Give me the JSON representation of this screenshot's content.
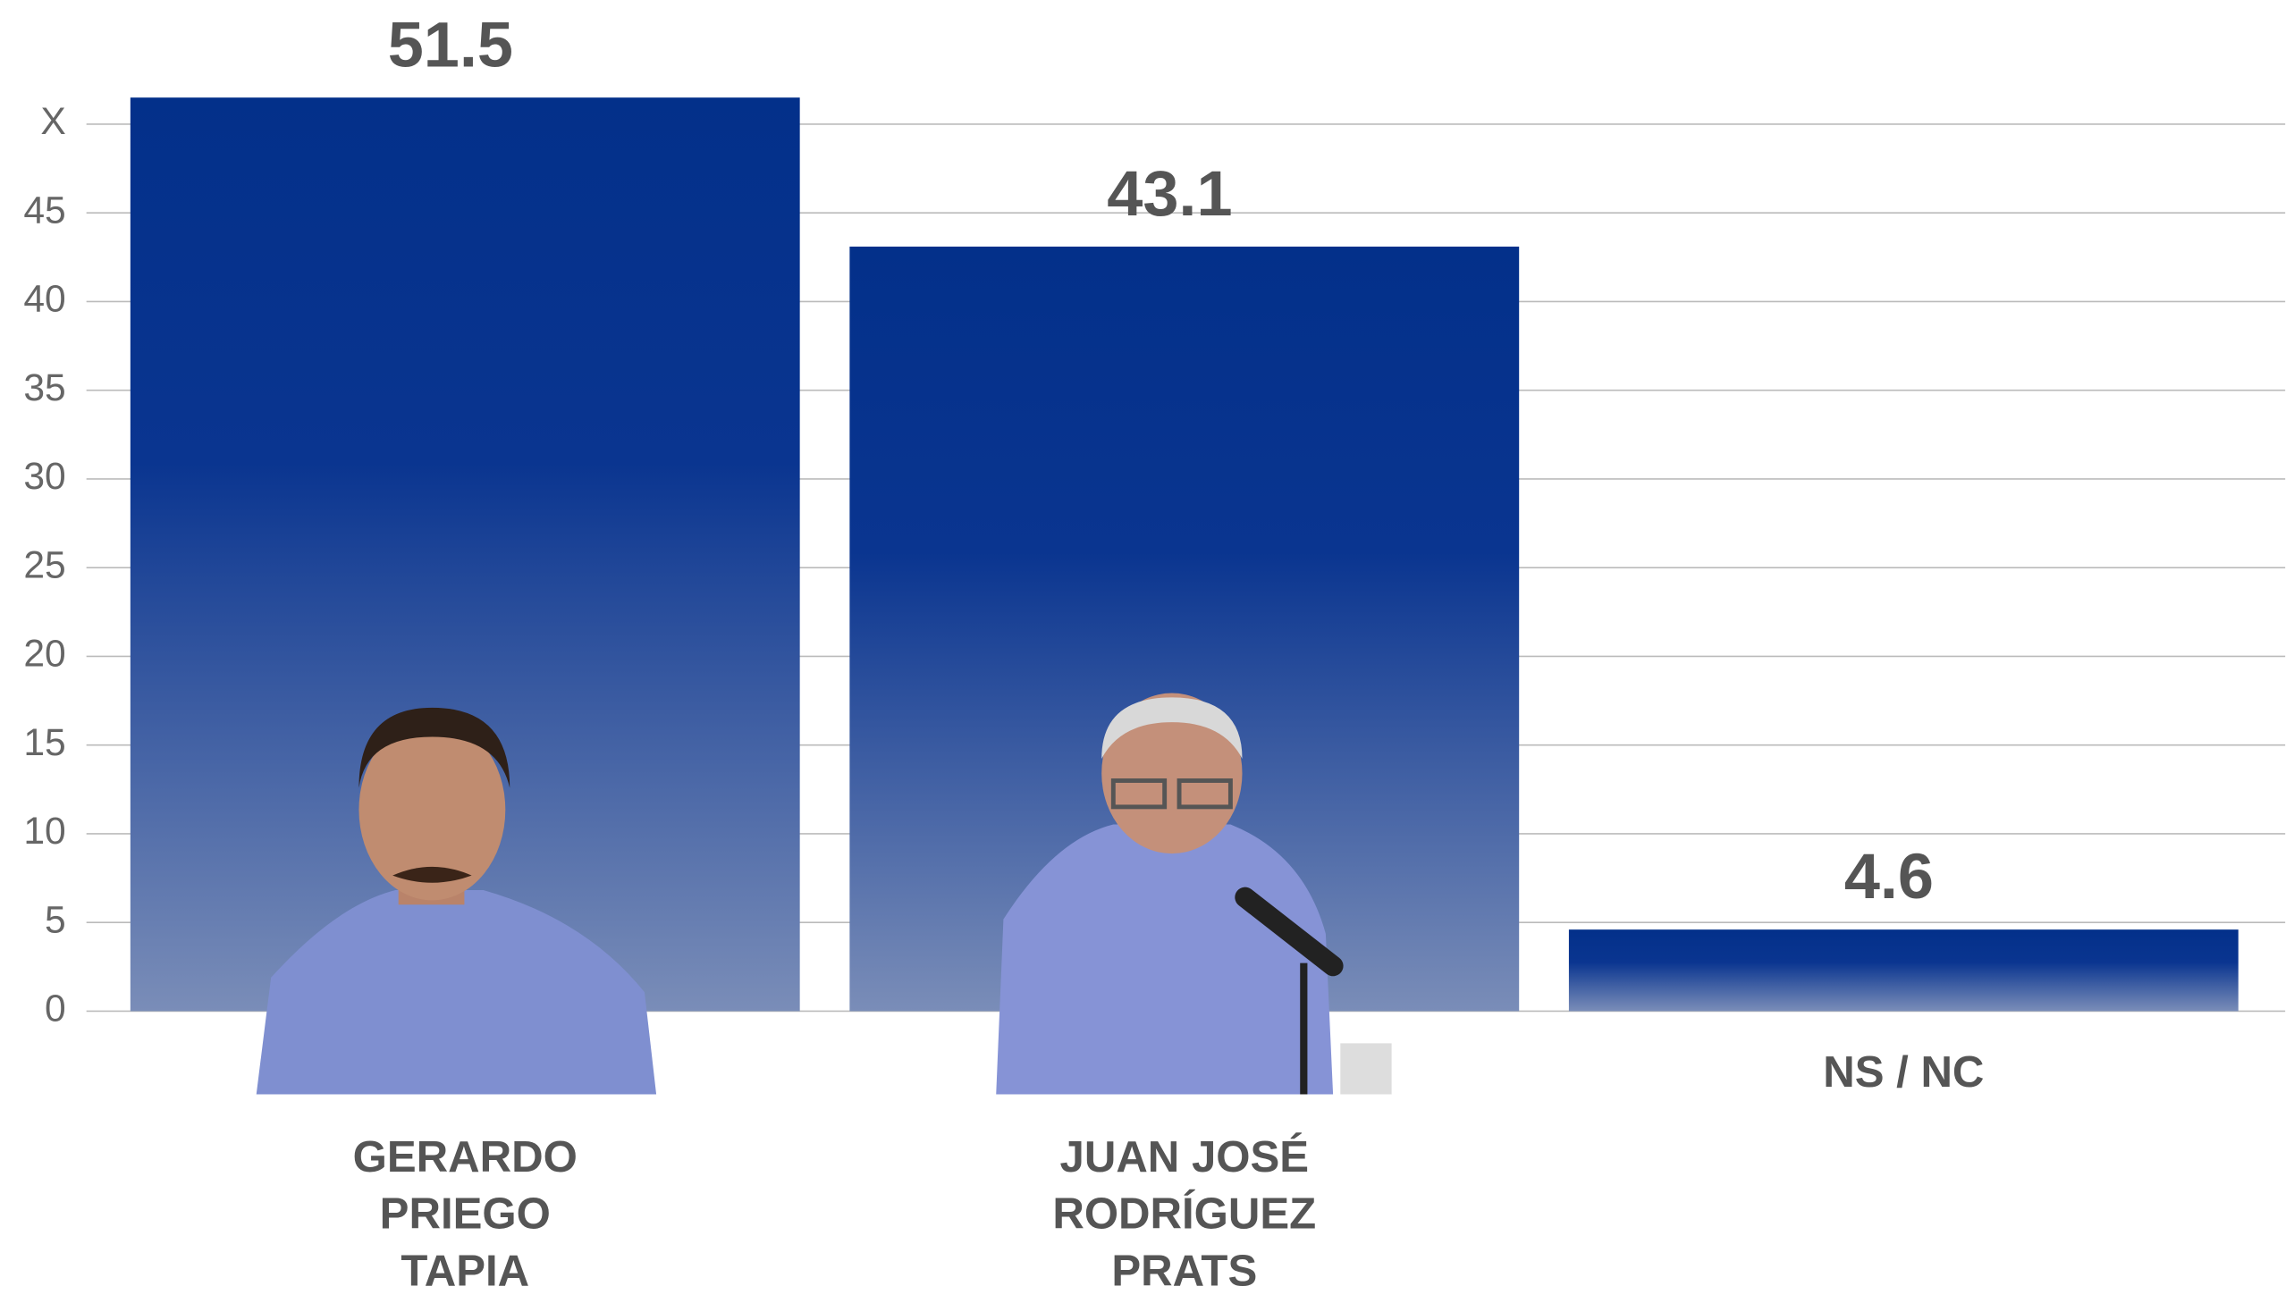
{
  "chart_data": {
    "type": "bar",
    "categories": [
      [
        "GERARDO",
        "PRIEGO",
        "TAPIA"
      ],
      [
        "JUAN JOSÉ",
        "RODRÍGUEZ",
        "PRATS"
      ],
      [
        "NS / NC"
      ]
    ],
    "values": [
      51.5,
      43.1,
      4.6
    ],
    "color": "#03308a",
    "ylim": [
      0,
      57
    ],
    "yticks": [
      0,
      5,
      10,
      15,
      20,
      25,
      30,
      35,
      40,
      45,
      {
        "value": 50,
        "label": "X"
      }
    ],
    "grid": true
  }
}
